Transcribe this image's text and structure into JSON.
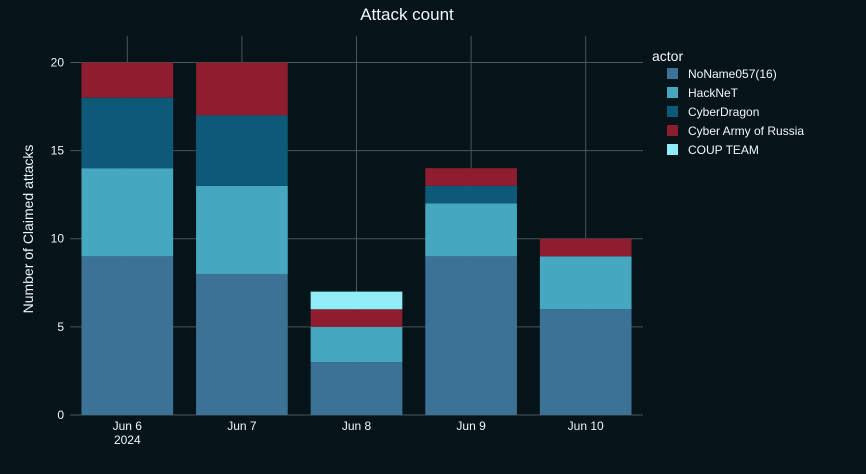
{
  "chart_data": {
    "type": "bar",
    "stacked": true,
    "title": "Attack count",
    "xlabel": "",
    "ylabel": "Number of Claimed attacks",
    "categories": [
      "Jun 6",
      "Jun 7",
      "Jun 8",
      "Jun 9",
      "Jun 10"
    ],
    "category_sublabels": [
      "2024",
      "",
      "",
      "",
      ""
    ],
    "ylim": [
      0,
      21.5
    ],
    "yticks": [
      0,
      5,
      10,
      15,
      20
    ],
    "grid": true,
    "legend": {
      "title": "actor",
      "placement": "right"
    },
    "series": [
      {
        "name": "NoName057(16)",
        "color": "#3b7296",
        "values": [
          9,
          8,
          3,
          9,
          6
        ]
      },
      {
        "name": "HackNeT",
        "color": "#45a8c0",
        "values": [
          5,
          5,
          2,
          3,
          3
        ]
      },
      {
        "name": "CyberDragon",
        "color": "#0c5a78",
        "values": [
          4,
          4,
          0,
          1,
          0
        ]
      },
      {
        "name": "Cyber Army of Russia",
        "color": "#8e1e2f",
        "values": [
          2,
          3,
          1,
          1,
          1
        ]
      },
      {
        "name": "COUP TEAM",
        "color": "#90edf7",
        "values": [
          0,
          0,
          1,
          0,
          0
        ]
      }
    ],
    "colors": {
      "background": "#051419",
      "grid": "#4a5558",
      "text": "#f2f5fa"
    }
  }
}
